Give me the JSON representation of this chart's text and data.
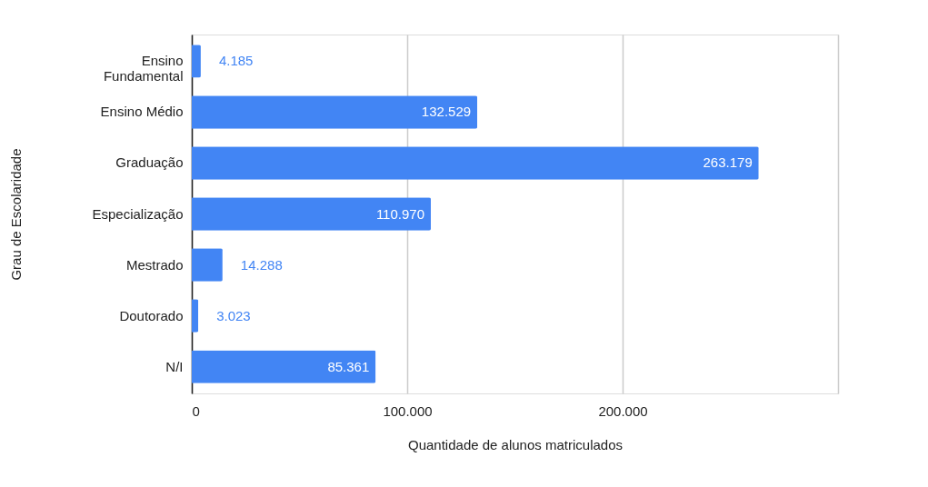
{
  "chart_data": {
    "type": "bar",
    "orientation": "horizontal",
    "xlabel": "Quantidade de alunos matriculados",
    "ylabel": "Grau de Escolaridade",
    "categories": [
      "Ensino Fundamental",
      "Ensino Médio",
      "Graduação",
      "Especialização",
      "Mestrado",
      "Doutorado",
      "N/I"
    ],
    "values": [
      4185,
      132529,
      263179,
      110970,
      14288,
      3023,
      85361
    ],
    "value_labels": [
      "4.185",
      "132.529",
      "263.179",
      "110.970",
      "14.288",
      "3.023",
      "85.361"
    ],
    "color": "#4285f4",
    "xlim": [
      0,
      300000
    ],
    "xticks": [
      {
        "value": 0,
        "label": "0"
      },
      {
        "value": 100000,
        "label": "100.000"
      },
      {
        "value": 200000,
        "label": "200.000"
      },
      {
        "value": 300000,
        "label": null
      }
    ],
    "grid": "x"
  }
}
